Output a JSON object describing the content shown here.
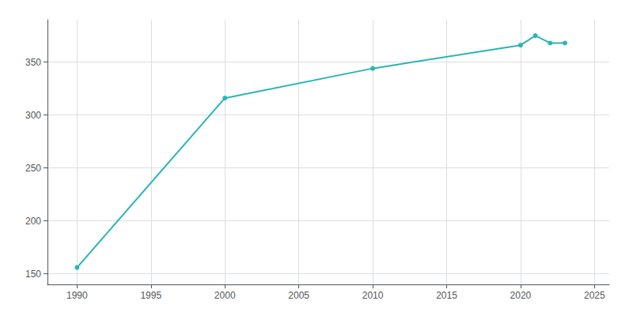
{
  "chart_data": {
    "type": "line",
    "x": [
      1990,
      2000,
      2010,
      2020,
      2021,
      2022,
      2023
    ],
    "values": [
      156,
      316,
      344,
      366,
      375,
      368,
      368
    ],
    "color": "#2ab5b5",
    "marker": "circle",
    "xlim": [
      1988,
      2026
    ],
    "xticks": [
      1990,
      1995,
      2000,
      2005,
      2010,
      2015,
      2020,
      2025
    ],
    "ylim": [
      140,
      390
    ],
    "yticks": [
      150,
      200,
      250,
      300,
      350
    ],
    "grid": true
  }
}
